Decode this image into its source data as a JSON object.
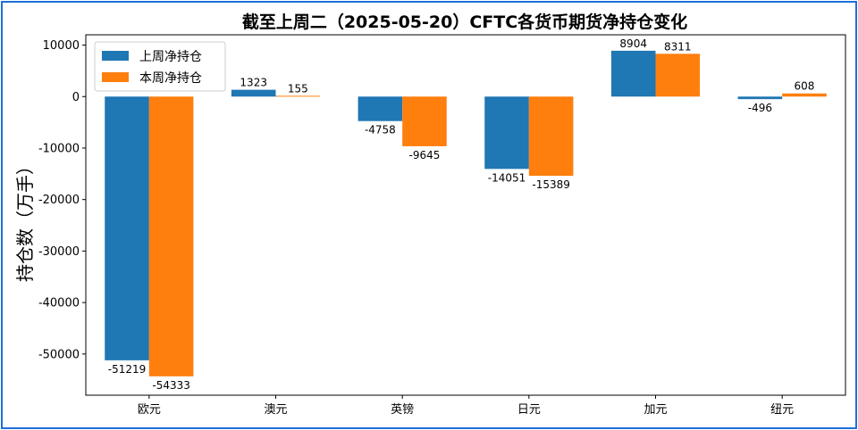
{
  "chart_data": {
    "type": "bar",
    "title": "截至上周二（2025-05-20）CFTC各货币期货净持仓变化",
    "xlabel": "",
    "ylabel": "持仓数（万手）",
    "categories": [
      "欧元",
      "澳元",
      "英镑",
      "日元",
      "加元",
      "纽元"
    ],
    "series": [
      {
        "name": "上周净持仓",
        "color": "#1f77b4",
        "values": [
          -51219,
          1323,
          -4758,
          -14051,
          8904,
          -496
        ]
      },
      {
        "name": "本周净持仓",
        "color": "#ff7f0e",
        "values": [
          -54333,
          155,
          -9645,
          -15389,
          8311,
          608
        ]
      }
    ],
    "ylim": [
      -58000,
      12000
    ],
    "yticks": [
      10000,
      0,
      -10000,
      -20000,
      -30000,
      -40000,
      -50000
    ],
    "legend": "top-left",
    "grid": false
  }
}
